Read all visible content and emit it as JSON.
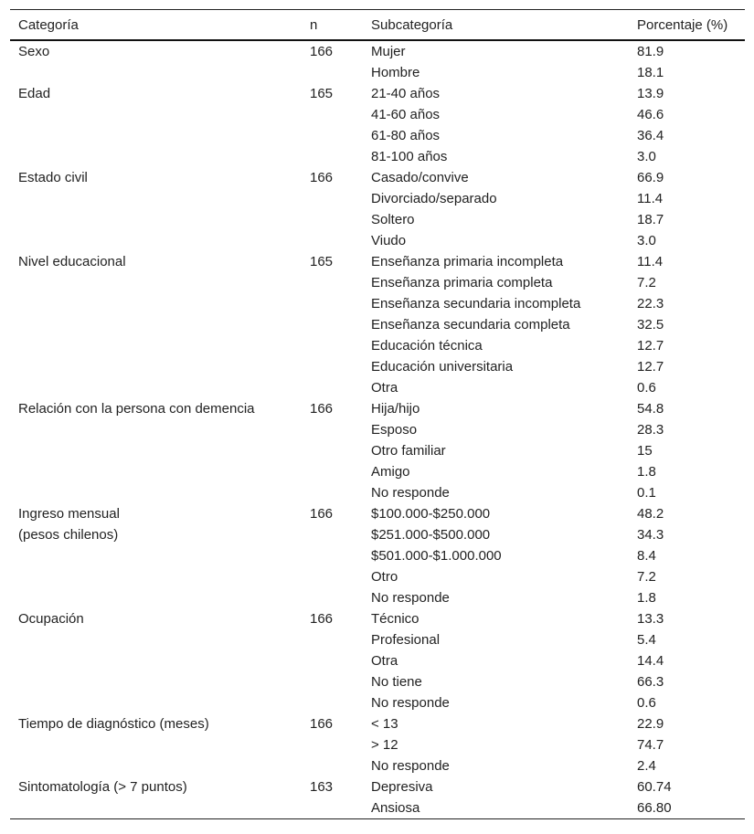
{
  "headers": {
    "category": "Categoría",
    "n": "n",
    "subcategory": "Subcategoría",
    "percent": "Porcentaje (%)"
  },
  "groups": [
    {
      "category": [
        "Sexo"
      ],
      "n": "166",
      "rows": [
        [
          "Mujer",
          "81.9"
        ],
        [
          "Hombre",
          "18.1"
        ]
      ]
    },
    {
      "category": [
        "Edad"
      ],
      "n": "165",
      "rows": [
        [
          "21-40 años",
          "13.9"
        ],
        [
          "41-60 años",
          "46.6"
        ],
        [
          "61-80 años",
          "36.4"
        ],
        [
          "81-100 años",
          "3.0"
        ]
      ]
    },
    {
      "category": [
        "Estado civil"
      ],
      "n": "166",
      "rows": [
        [
          "Casado/convive",
          "66.9"
        ],
        [
          "Divorciado/separado",
          "11.4"
        ],
        [
          "Soltero",
          "18.7"
        ],
        [
          "Viudo",
          "3.0"
        ]
      ]
    },
    {
      "category": [
        "Nivel educacional"
      ],
      "n": "165",
      "rows": [
        [
          "Enseñanza primaria incompleta",
          "11.4"
        ],
        [
          "Enseñanza primaria completa",
          "7.2"
        ],
        [
          "Enseñanza secundaria incompleta",
          "22.3"
        ],
        [
          "Enseñanza secundaria completa",
          "32.5"
        ],
        [
          "Educación técnica",
          "12.7"
        ],
        [
          "Educación universitaria",
          "12.7"
        ],
        [
          "Otra",
          "0.6"
        ]
      ]
    },
    {
      "category": [
        "Relación con la persona con demencia"
      ],
      "n": "166",
      "rows": [
        [
          "Hija/hijo",
          "54.8"
        ],
        [
          "Esposo",
          "28.3"
        ],
        [
          "Otro familiar",
          "15"
        ],
        [
          "Amigo",
          "1.8"
        ],
        [
          "No responde",
          "0.1"
        ]
      ]
    },
    {
      "category": [
        "Ingreso mensual",
        "(pesos chilenos)"
      ],
      "n": "166",
      "rows": [
        [
          "$100.000-$250.000",
          "48.2"
        ],
        [
          "$251.000-$500.000",
          "34.3"
        ],
        [
          "$501.000-$1.000.000",
          "8.4"
        ],
        [
          "Otro",
          "7.2"
        ],
        [
          "No responde",
          "1.8"
        ]
      ]
    },
    {
      "category": [
        "Ocupación"
      ],
      "n": "166",
      "rows": [
        [
          "Técnico",
          "13.3"
        ],
        [
          "Profesional",
          "5.4"
        ],
        [
          "Otra",
          "14.4"
        ],
        [
          "No tiene",
          "66.3"
        ],
        [
          "No responde",
          "0.6"
        ]
      ]
    },
    {
      "category": [
        "Tiempo de diagnóstico (meses)"
      ],
      "n": "166",
      "rows": [
        [
          "< 13",
          "22.9"
        ],
        [
          "> 12",
          "74.7"
        ],
        [
          "No responde",
          "2.4"
        ]
      ]
    },
    {
      "category": [
        "Sintomatología (> 7 puntos)"
      ],
      "n": "163",
      "rows": [
        [
          "Depresiva",
          "60.74"
        ],
        [
          "Ansiosa",
          "66.80"
        ]
      ]
    }
  ]
}
